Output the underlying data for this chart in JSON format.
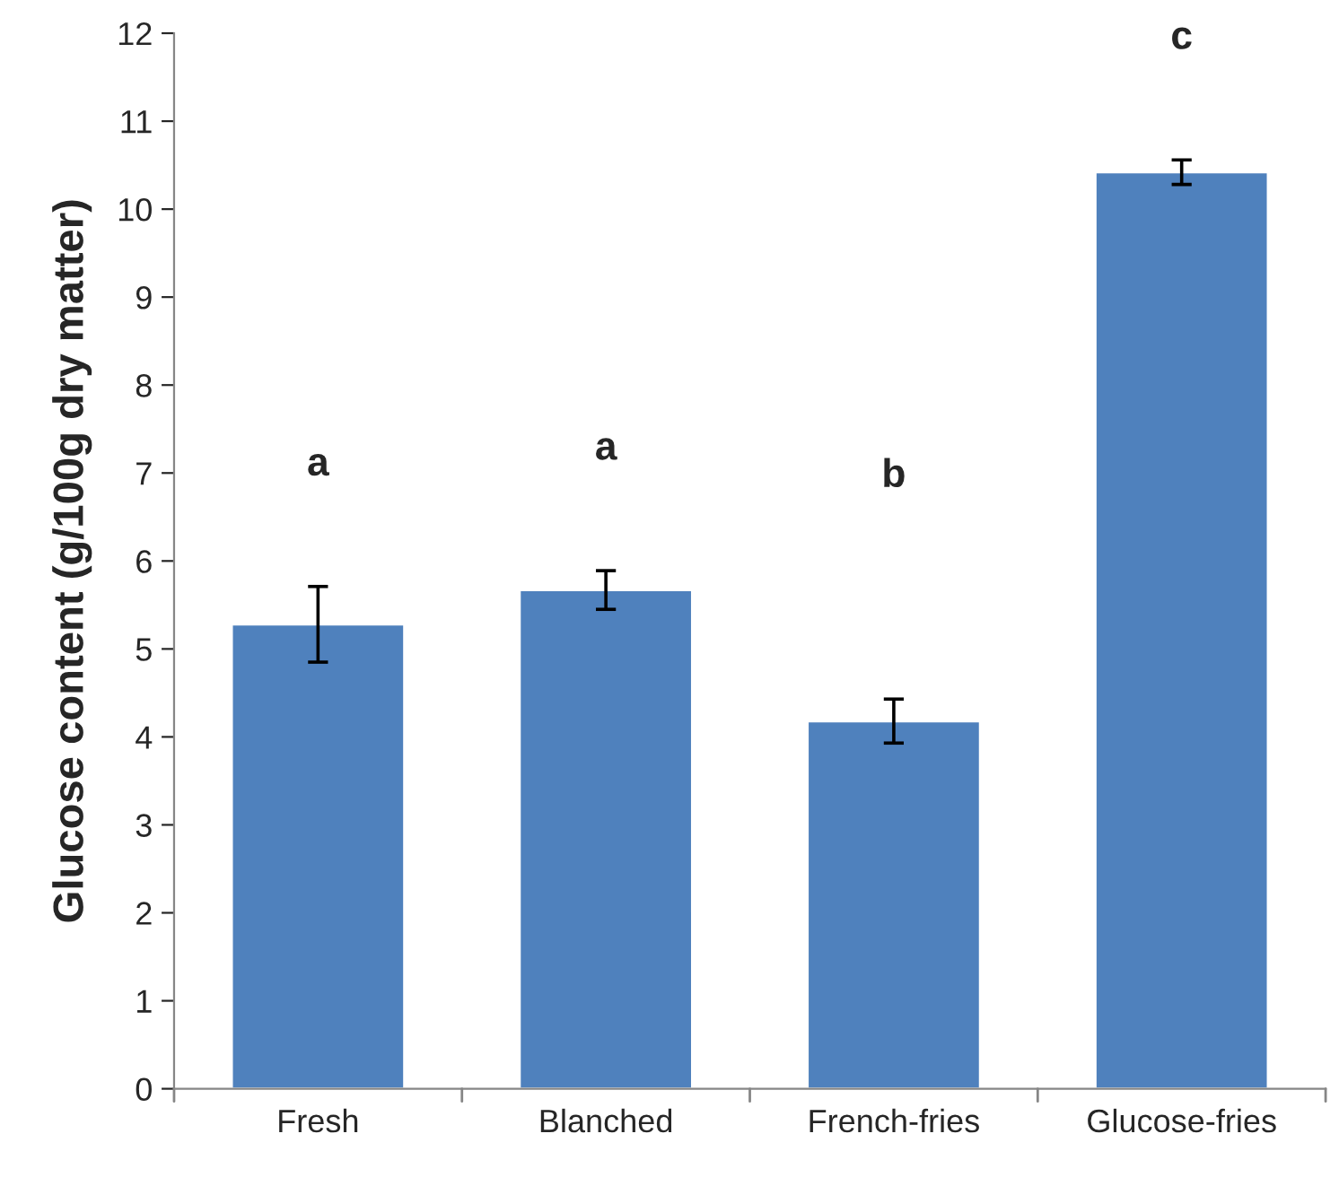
{
  "chart_data": {
    "type": "bar",
    "ylabel": "Glucose content (g/100g dry matter)",
    "categories": [
      "Fresh",
      "Blanched",
      "French-fries",
      "Glucose-fries"
    ],
    "values": [
      5.28,
      5.67,
      4.18,
      10.42
    ],
    "errors": [
      0.43,
      0.22,
      0.25,
      0.14
    ],
    "color": "#4f81bd",
    "ylim": [
      0,
      12
    ],
    "yticks": [
      0,
      1,
      2,
      3,
      4,
      5,
      6,
      7,
      8,
      9,
      10,
      11,
      12
    ],
    "grid": false,
    "annotations": [
      "a",
      "a",
      "b",
      "c"
    ]
  }
}
